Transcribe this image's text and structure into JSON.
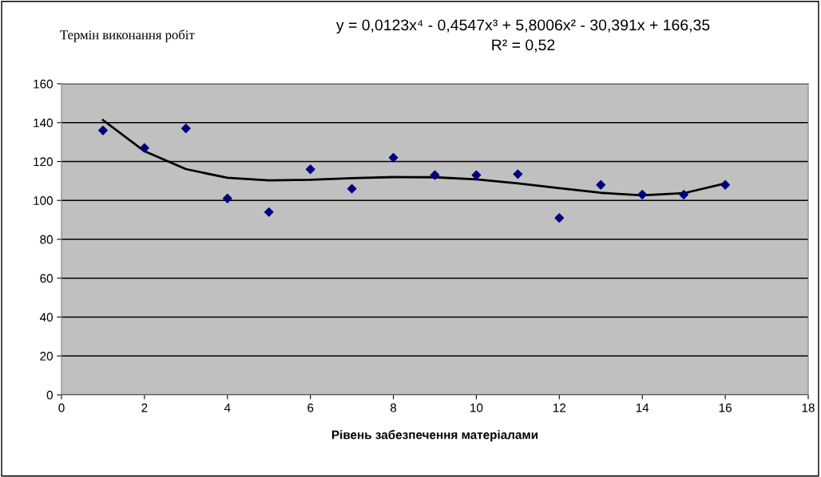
{
  "chart_data": {
    "type": "scatter",
    "title": "Термін виконання робіт",
    "xlabel": "Рівень забезпечення матеріалами",
    "annotations": [
      "y = 0,0123x⁴ - 0,4547x³ + 5,8006x² - 30,391x + 166,35",
      "R² = 0,52"
    ],
    "x": [
      1,
      2,
      3,
      4,
      5,
      6,
      7,
      8,
      9,
      10,
      11,
      12,
      13,
      14,
      15,
      16
    ],
    "series": [
      {
        "color": "#00007f",
        "marker": "diamond",
        "values": [
          136,
          127,
          137,
          101,
          94,
          116,
          106,
          122,
          113,
          113,
          113.5,
          91,
          108,
          103,
          103,
          108
        ]
      },
      {
        "type": "line",
        "color": "#000000",
        "line_style": "solid",
        "x": [
          1,
          2,
          3,
          4,
          5,
          6,
          7,
          8,
          9,
          10,
          11,
          12,
          13,
          14,
          15,
          16
        ],
        "values": [
          141.3,
          125.3,
          116.1,
          111.6,
          110.3,
          110.6,
          111.4,
          112.0,
          111.9,
          110.8,
          108.8,
          106.3,
          103.9,
          102.6,
          103.7,
          108.7
        ]
      }
    ],
    "xlim": [
      0,
      18
    ],
    "xticks": [
      0,
      2,
      4,
      6,
      8,
      10,
      12,
      14,
      16,
      18
    ],
    "ylim": [
      0,
      160
    ],
    "yticks": [
      0,
      20,
      40,
      60,
      80,
      100,
      120,
      140,
      160
    ],
    "grid": "y",
    "legend": false
  }
}
